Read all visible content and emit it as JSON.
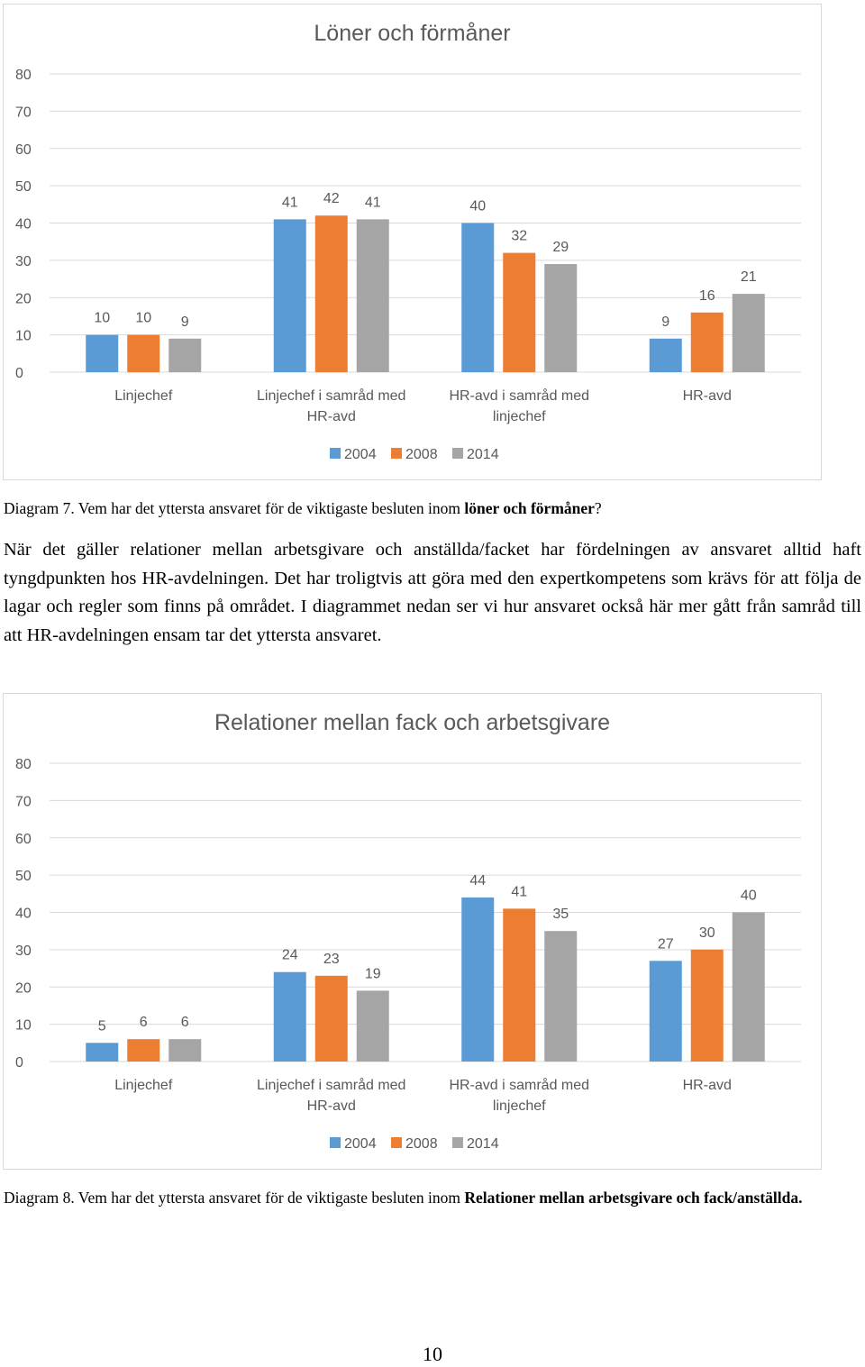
{
  "chart_data": [
    {
      "type": "bar",
      "title": "Löner och förmåner",
      "categories": [
        [
          "Linjechef"
        ],
        [
          "Linjechef i samråd med",
          "HR-avd"
        ],
        [
          "HR-avd i samråd med",
          "linjechef"
        ],
        [
          "HR-avd"
        ]
      ],
      "series": [
        {
          "name": "2004",
          "color": "#5b9bd5",
          "values": [
            10,
            41,
            40,
            9
          ]
        },
        {
          "name": "2008",
          "color": "#ed7d31",
          "values": [
            10,
            42,
            32,
            16
          ]
        },
        {
          "name": "2014",
          "color": "#a5a5a5",
          "values": [
            9,
            41,
            29,
            21
          ]
        }
      ],
      "ylim": [
        0,
        80
      ],
      "yticks": [
        0,
        10,
        20,
        30,
        40,
        50,
        60,
        70,
        80
      ],
      "grid": true,
      "legend": "bottom",
      "data_labels": true
    },
    {
      "type": "bar",
      "title": "Relationer mellan fack och arbetsgivare",
      "categories": [
        [
          "Linjechef"
        ],
        [
          "Linjechef i samråd med",
          "HR-avd"
        ],
        [
          "HR-avd i samråd med",
          "linjechef"
        ],
        [
          "HR-avd"
        ]
      ],
      "series": [
        {
          "name": "2004",
          "color": "#5b9bd5",
          "values": [
            5,
            24,
            44,
            27
          ]
        },
        {
          "name": "2008",
          "color": "#ed7d31",
          "values": [
            6,
            23,
            41,
            30
          ]
        },
        {
          "name": "2014",
          "color": "#a5a5a5",
          "values": [
            6,
            19,
            35,
            40
          ]
        }
      ],
      "ylim": [
        0,
        80
      ],
      "yticks": [
        0,
        10,
        20,
        30,
        40,
        50,
        60,
        70,
        80
      ],
      "grid": true,
      "legend": "bottom",
      "data_labels": true
    }
  ],
  "caption1": {
    "text": "Diagram 7. Vem har det yttersta ansvaret för de viktigaste besluten inom ",
    "bold": "löner och förmåner",
    "end": "?"
  },
  "paragraph": "När det gäller relationer mellan arbetsgivare och anställda/facket har fördelningen av ansvaret alltid haft tyngdpunkten hos HR-avdelningen. Det har troligtvis att göra med den expertkompetens som krävs för att följa de lagar och regler som finns på området. I diagrammet nedan ser vi hur ansvaret också här mer gått från samråd till att HR-avdelningen ensam tar det yttersta ansvaret.",
  "caption2": {
    "text": "Diagram 8. Vem har det yttersta ansvaret för de viktigaste besluten inom ",
    "bold": "Relationer mellan arbetsgivare och fack/anställda."
  },
  "page_number": "10"
}
